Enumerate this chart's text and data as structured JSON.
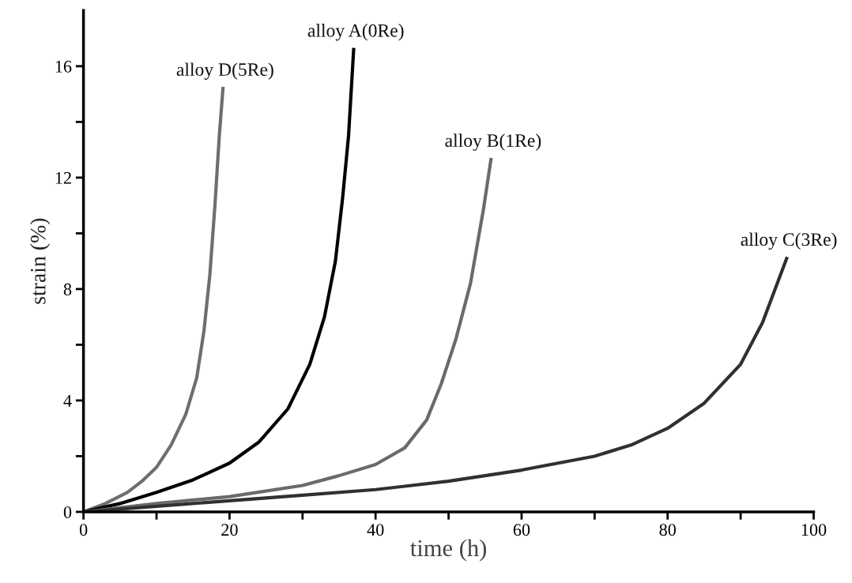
{
  "chart_data": {
    "type": "line",
    "xlabel": "time (h)",
    "ylabel": "strain (%)",
    "xlim": [
      0,
      100
    ],
    "ylim": [
      0,
      18
    ],
    "xticks": [
      0,
      {
        "value": 10,
        "label": null
      },
      20,
      {
        "value": 30,
        "label": null
      },
      40,
      {
        "value": 50,
        "label": null
      },
      60,
      {
        "value": 70,
        "label": null
      },
      80,
      {
        "value": 90,
        "label": null
      },
      100
    ],
    "yticks": [
      0,
      {
        "value": 2,
        "label": null
      },
      4,
      {
        "value": 6,
        "label": null
      },
      8,
      {
        "value": 10,
        "label": null
      },
      12,
      {
        "value": 14,
        "label": null
      },
      16
    ],
    "grid": false,
    "legend": false,
    "marker": "none",
    "line_style": "solid",
    "series": [
      {
        "name": "alloy D(5Re)",
        "color": "#6e6e6e",
        "x": [
          0,
          3,
          6,
          8,
          10,
          12,
          14,
          15.5,
          16.5,
          17.3,
          18,
          18.6,
          19.1
        ],
        "values": [
          0,
          0.3,
          0.7,
          1.1,
          1.6,
          2.4,
          3.5,
          4.8,
          6.5,
          8.5,
          11,
          13.5,
          15.2
        ]
      },
      {
        "name": "alloy A(0Re)",
        "color": "#000000",
        "x": [
          0,
          5,
          10,
          15,
          20,
          24,
          28,
          31,
          33,
          34.5,
          35.5,
          36.3,
          37
        ],
        "values": [
          0,
          0.3,
          0.7,
          1.15,
          1.75,
          2.5,
          3.7,
          5.3,
          7,
          9,
          11.3,
          13.5,
          16.6
        ]
      },
      {
        "name": "alloy B(1Re)",
        "color": "#6a6a6a",
        "x": [
          0,
          10,
          20,
          30,
          35,
          40,
          44,
          47,
          49,
          51,
          53,
          54.8,
          55.8
        ],
        "values": [
          0,
          0.3,
          0.55,
          0.95,
          1.3,
          1.7,
          2.3,
          3.3,
          4.6,
          6.2,
          8.2,
          10.9,
          12.65
        ]
      },
      {
        "name": "alloy C(3Re)",
        "color": "#303030",
        "x": [
          0,
          10,
          20,
          30,
          40,
          50,
          60,
          70,
          75,
          80,
          85,
          90,
          93,
          96.3
        ],
        "values": [
          0,
          0.2,
          0.4,
          0.6,
          0.8,
          1.1,
          1.5,
          2.0,
          2.4,
          3.0,
          3.9,
          5.3,
          6.8,
          9.1
        ]
      }
    ]
  }
}
